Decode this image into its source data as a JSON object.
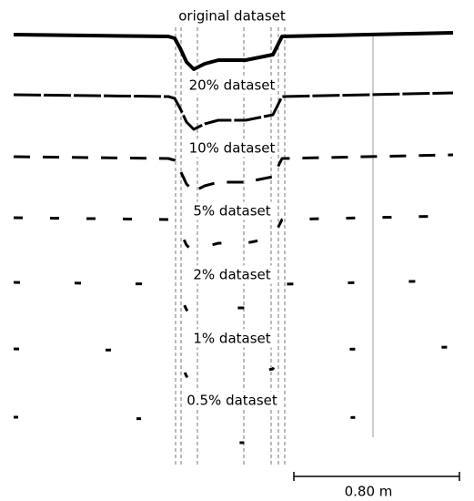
{
  "panels": [
    {
      "label": "original dataset"
    },
    {
      "label": "20% dataset"
    },
    {
      "label": "10% dataset"
    },
    {
      "label": "5% dataset"
    },
    {
      "label": "2% dataset"
    },
    {
      "label": "1% dataset"
    },
    {
      "label": "0.5% dataset"
    }
  ],
  "scale_bar": {
    "label": "0.80 m"
  }
}
